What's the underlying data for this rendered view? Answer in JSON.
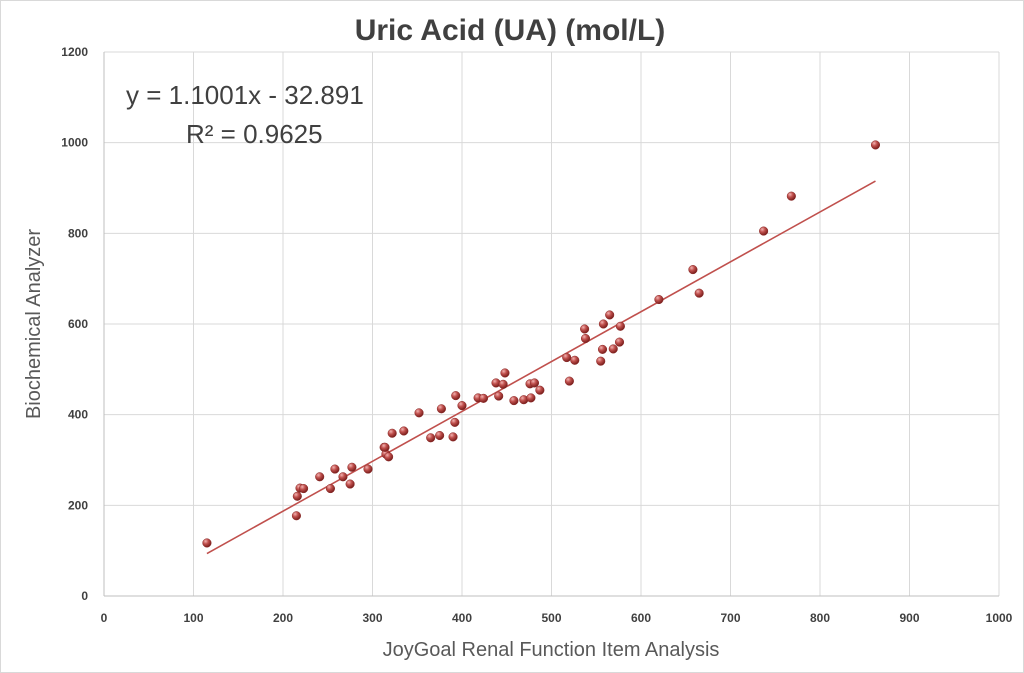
{
  "chart_data": {
    "type": "scatter",
    "title": "Uric Acid (UA) (mol/L)",
    "xlabel": "JoyGoal Renal Function Item Analysis",
    "ylabel": "Biochemical  Analyzer",
    "xlim": [
      0,
      1000
    ],
    "ylim": [
      0,
      1200
    ],
    "xticks": [
      "0",
      "100",
      "200",
      "300",
      "400",
      "500",
      "600",
      "700",
      "800",
      "900",
      "1000"
    ],
    "yticks": [
      "0",
      "200",
      "400",
      "600",
      "800",
      "1000",
      "1200"
    ],
    "grid": true,
    "legend": "none",
    "marker_color": "#c0504d",
    "trendline": {
      "slope": 1.1001,
      "intercept": -32.891,
      "x_range": [
        115,
        862
      ],
      "equation": "y = 1.1001x - 32.891",
      "r_squared": "R² = 0.9625"
    },
    "points": [
      [
        115,
        117
      ],
      [
        215,
        177
      ],
      [
        216,
        220
      ],
      [
        219,
        238
      ],
      [
        223,
        237
      ],
      [
        241,
        263
      ],
      [
        253,
        237
      ],
      [
        258,
        280
      ],
      [
        267,
        263
      ],
      [
        275,
        247
      ],
      [
        277,
        284
      ],
      [
        295,
        280
      ],
      [
        313,
        328
      ],
      [
        315,
        313
      ],
      [
        314,
        328
      ],
      [
        318,
        307
      ],
      [
        322,
        359
      ],
      [
        335,
        364
      ],
      [
        352,
        404
      ],
      [
        365,
        349
      ],
      [
        375,
        354
      ],
      [
        377,
        413
      ],
      [
        390,
        351
      ],
      [
        393,
        442
      ],
      [
        392,
        383
      ],
      [
        400,
        420
      ],
      [
        418,
        437
      ],
      [
        424,
        436
      ],
      [
        438,
        470
      ],
      [
        441,
        441
      ],
      [
        446,
        467
      ],
      [
        448,
        492
      ],
      [
        458,
        431
      ],
      [
        469,
        433
      ],
      [
        476,
        468
      ],
      [
        477,
        437
      ],
      [
        481,
        470
      ],
      [
        487,
        454
      ],
      [
        517,
        526
      ],
      [
        520,
        474
      ],
      [
        526,
        520
      ],
      [
        537,
        589
      ],
      [
        538,
        568
      ],
      [
        555,
        518
      ],
      [
        557,
        544
      ],
      [
        558,
        600
      ],
      [
        565,
        620
      ],
      [
        569,
        545
      ],
      [
        576,
        560
      ],
      [
        577,
        595
      ],
      [
        620,
        654
      ],
      [
        658,
        720
      ],
      [
        665,
        668
      ],
      [
        737,
        805
      ],
      [
        768,
        882
      ],
      [
        862,
        995
      ]
    ]
  }
}
